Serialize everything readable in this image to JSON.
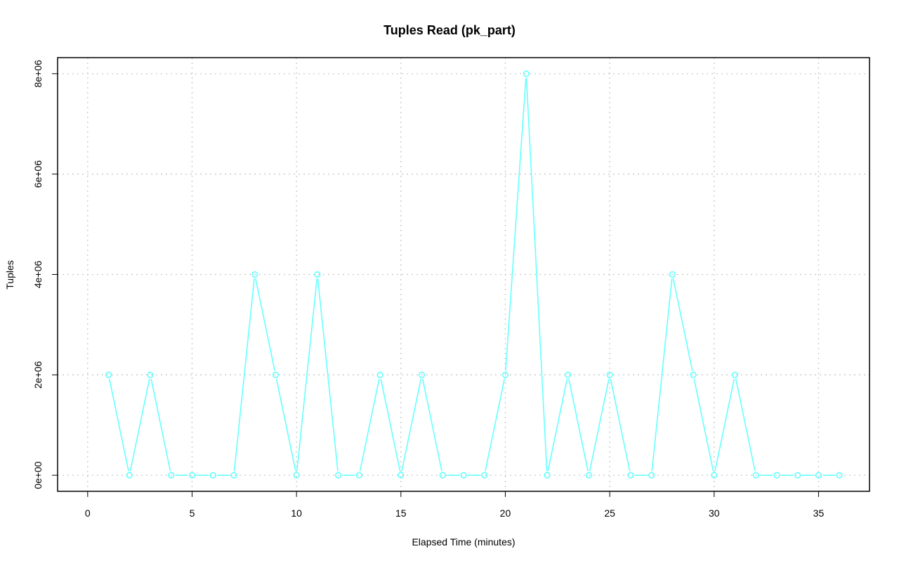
{
  "chart_data": {
    "type": "line",
    "title": "Tuples Read (pk_part)",
    "xlabel": "Elapsed Time (minutes)",
    "ylabel": "Tuples",
    "x_ticks": [
      0,
      5,
      10,
      15,
      20,
      25,
      30,
      35
    ],
    "x_tick_labels": [
      "0",
      "5",
      "10",
      "15",
      "20",
      "25",
      "30",
      "35"
    ],
    "y_ticks": [
      0,
      2000000,
      4000000,
      6000000,
      8000000
    ],
    "y_tick_labels": [
      "0e+00",
      "2e+06",
      "4e+06",
      "6e+06",
      "8e+06"
    ],
    "xlim": [
      -1.44,
      37.44
    ],
    "ylim": [
      -320000,
      8320000
    ],
    "grid": true,
    "color": "#66ffff",
    "series": [
      {
        "x": [
          1,
          2,
          3,
          4,
          5,
          6,
          7,
          8,
          9,
          10,
          11,
          12,
          13,
          14,
          15,
          16,
          17,
          18,
          19,
          20,
          21,
          22,
          23,
          24,
          25,
          26,
          27,
          28,
          29,
          30,
          31,
          32,
          33,
          34,
          35,
          36
        ],
        "values": [
          2000000,
          0,
          2000000,
          0,
          0,
          0,
          0,
          4000000,
          2000000,
          0,
          4000000,
          0,
          0,
          2000000,
          0,
          2000000,
          0,
          0,
          0,
          2000000,
          8000000,
          0,
          2000000,
          0,
          2000000,
          0,
          0,
          4000000,
          2000000,
          0,
          2000000,
          0,
          0,
          0,
          0,
          0
        ]
      }
    ]
  }
}
